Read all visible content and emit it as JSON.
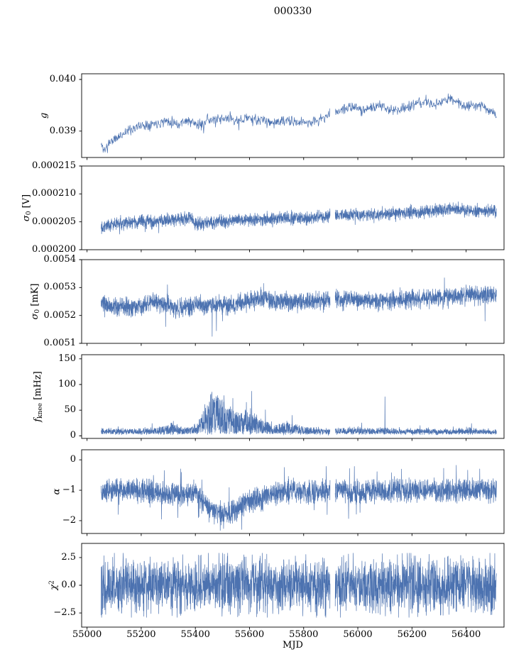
{
  "figure": {
    "title": "000330",
    "xlabel": "MJD",
    "line_color": "#4c72b0",
    "frame_color": "#000000",
    "xlim": [
      54980,
      56540
    ],
    "x_range": [
      55052,
      56512
    ],
    "gaps": [
      [
        55898,
        55916
      ]
    ],
    "xticks": [
      {
        "v": 55000,
        "label": "55000"
      },
      {
        "v": 55200,
        "label": "55200"
      },
      {
        "v": 55400,
        "label": "55400"
      },
      {
        "v": 55600,
        "label": "55600"
      },
      {
        "v": 55800,
        "label": "55800"
      },
      {
        "v": 56000,
        "label": "56000"
      },
      {
        "v": 56200,
        "label": "56200"
      },
      {
        "v": 56400,
        "label": "56400"
      }
    ]
  },
  "chart_data": [
    {
      "type": "line",
      "ylabel_text": "g",
      "ylabel_parts": [
        {
          "t": "g",
          "i": true
        }
      ],
      "ylim": [
        0.03849,
        0.04011
      ],
      "yticks": [
        {
          "v": 0.039,
          "label": "0.039"
        },
        {
          "v": 0.04,
          "label": "0.040"
        }
      ],
      "series": {
        "mode": "gauss",
        "points": 1000,
        "std": 5e-05,
        "seed": 11,
        "clip": [
          0.03852,
          0.04008
        ],
        "baseline": [
          [
            55055,
            0.03872
          ],
          [
            55065,
            0.03862
          ],
          [
            55080,
            0.03878
          ],
          [
            55110,
            0.03886
          ],
          [
            55140,
            0.03898
          ],
          [
            55180,
            0.03908
          ],
          [
            55220,
            0.03913
          ],
          [
            55260,
            0.03916
          ],
          [
            55290,
            0.0392
          ],
          [
            55320,
            0.03918
          ],
          [
            55340,
            0.03912
          ],
          [
            55360,
            0.03922
          ],
          [
            55390,
            0.03916
          ],
          [
            55420,
            0.0391
          ],
          [
            55440,
            0.03924
          ],
          [
            55470,
            0.0392
          ],
          [
            55500,
            0.03922
          ],
          [
            55530,
            0.03926
          ],
          [
            55560,
            0.03918
          ],
          [
            55590,
            0.03928
          ],
          [
            55620,
            0.0392
          ],
          [
            55650,
            0.03922
          ],
          [
            55680,
            0.03916
          ],
          [
            55710,
            0.03918
          ],
          [
            55740,
            0.0392
          ],
          [
            55770,
            0.03916
          ],
          [
            55800,
            0.03918
          ],
          [
            55830,
            0.03917
          ],
          [
            55860,
            0.03922
          ],
          [
            55890,
            0.0393
          ],
          [
            55920,
            0.03938
          ],
          [
            55950,
            0.03944
          ],
          [
            55980,
            0.03946
          ],
          [
            56010,
            0.03942
          ],
          [
            56040,
            0.03944
          ],
          [
            56070,
            0.03948
          ],
          [
            56100,
            0.03946
          ],
          [
            56130,
            0.0394
          ],
          [
            56160,
            0.03944
          ],
          [
            56190,
            0.03948
          ],
          [
            56220,
            0.03952
          ],
          [
            56250,
            0.03958
          ],
          [
            56280,
            0.0395
          ],
          [
            56310,
            0.03956
          ],
          [
            56340,
            0.03964
          ],
          [
            56370,
            0.03955
          ],
          [
            56400,
            0.03948
          ],
          [
            56430,
            0.03952
          ],
          [
            56460,
            0.0395
          ],
          [
            56490,
            0.03938
          ],
          [
            56510,
            0.03934
          ]
        ],
        "spikes": [
          [
            55075,
            0.03858
          ],
          [
            55430,
            0.03896
          ],
          [
            55560,
            0.03902
          ]
        ]
      }
    },
    {
      "type": "line",
      "ylabel_text": "sigma0 [V]",
      "ylabel_parts": [
        {
          "t": "σ",
          "i": true
        },
        {
          "t": "0",
          "sub": true
        },
        {
          "t": " [V]"
        }
      ],
      "ylim": [
        0.0002,
        0.000215
      ],
      "yticks": [
        {
          "v": 0.0002,
          "label": "0.000200"
        },
        {
          "v": 0.000205,
          "label": "0.000205"
        },
        {
          "v": 0.00021,
          "label": "0.000210"
        },
        {
          "v": 0.000215,
          "label": "0.000215"
        }
      ],
      "series": {
        "mode": "gauss",
        "points": 2600,
        "std": 5.5e-07,
        "seed": 22,
        "clip": [
          0.000201,
          0.000214
        ],
        "baseline": [
          [
            55052,
            0.0002042
          ],
          [
            55100,
            0.0002046
          ],
          [
            55150,
            0.0002048
          ],
          [
            55200,
            0.000205
          ],
          [
            55250,
            0.0002051
          ],
          [
            55300,
            0.0002053
          ],
          [
            55350,
            0.0002055
          ],
          [
            55385,
            0.0002057
          ],
          [
            55395,
            0.0002046
          ],
          [
            55450,
            0.0002049
          ],
          [
            55500,
            0.0002051
          ],
          [
            55550,
            0.0002053
          ],
          [
            55600,
            0.0002054
          ],
          [
            55650,
            0.0002055
          ],
          [
            55700,
            0.0002056
          ],
          [
            55750,
            0.0002057
          ],
          [
            55800,
            0.0002056
          ],
          [
            55850,
            0.0002058
          ],
          [
            55900,
            0.0002061
          ],
          [
            55950,
            0.0002062
          ],
          [
            56000,
            0.0002062
          ],
          [
            56050,
            0.0002063
          ],
          [
            56100,
            0.0002064
          ],
          [
            56150,
            0.0002066
          ],
          [
            56200,
            0.0002067
          ],
          [
            56250,
            0.0002069
          ],
          [
            56300,
            0.0002071
          ],
          [
            56330,
            0.0002073
          ],
          [
            56360,
            0.0002074
          ],
          [
            56400,
            0.0002071
          ],
          [
            56450,
            0.000207
          ],
          [
            56512,
            0.000207
          ]
        ],
        "spikes": [
          [
            55120,
            0.0002028
          ],
          [
            55215,
            0.0002032
          ],
          [
            55265,
            0.000203
          ],
          [
            55430,
            0.0002034
          ],
          [
            55470,
            0.0002036
          ],
          [
            55990,
            0.0002045
          ],
          [
            56060,
            0.0002048
          ],
          [
            56140,
            0.000205
          ]
        ]
      }
    },
    {
      "type": "line",
      "ylabel_text": "sigma0 [mK]",
      "ylabel_parts": [
        {
          "t": "σ",
          "i": true
        },
        {
          "t": "0",
          "sub": true
        },
        {
          "t": " [mK]"
        }
      ],
      "ylim": [
        0.0051,
        0.0054
      ],
      "yticks": [
        {
          "v": 0.0051,
          "label": "0.0051"
        },
        {
          "v": 0.0052,
          "label": "0.0052"
        },
        {
          "v": 0.0053,
          "label": "0.0053"
        },
        {
          "v": 0.0054,
          "label": "0.0054"
        }
      ],
      "series": {
        "mode": "gauss",
        "points": 2600,
        "std": 1.6e-05,
        "seed": 33,
        "clip": [
          0.00512,
          0.00538
        ],
        "baseline": [
          [
            55052,
            0.00524
          ],
          [
            55100,
            0.00523
          ],
          [
            55150,
            0.005228
          ],
          [
            55200,
            0.005232
          ],
          [
            55240,
            0.00525
          ],
          [
            55270,
            0.005245
          ],
          [
            55300,
            0.005238
          ],
          [
            55330,
            0.005225
          ],
          [
            55360,
            0.00523
          ],
          [
            55400,
            0.005238
          ],
          [
            55440,
            0.005235
          ],
          [
            55480,
            0.005238
          ],
          [
            55520,
            0.00524
          ],
          [
            55560,
            0.005242
          ],
          [
            55600,
            0.005248
          ],
          [
            55640,
            0.005262
          ],
          [
            55670,
            0.005258
          ],
          [
            55700,
            0.00525
          ],
          [
            55750,
            0.005248
          ],
          [
            55800,
            0.00525
          ],
          [
            55850,
            0.005252
          ],
          [
            55900,
            0.005255
          ],
          [
            55950,
            0.005255
          ],
          [
            56000,
            0.005258
          ],
          [
            56050,
            0.00525
          ],
          [
            56100,
            0.005252
          ],
          [
            56150,
            0.005255
          ],
          [
            56200,
            0.005258
          ],
          [
            56250,
            0.005262
          ],
          [
            56300,
            0.005265
          ],
          [
            56350,
            0.005268
          ],
          [
            56400,
            0.005272
          ],
          [
            56450,
            0.005272
          ],
          [
            56512,
            0.005275
          ]
        ],
        "spikes": [
          [
            55290,
            0.00516
          ],
          [
            55297,
            0.00531
          ],
          [
            55462,
            0.005125
          ],
          [
            55478,
            0.005145
          ],
          [
            55500,
            0.00518
          ],
          [
            55652,
            0.005315
          ],
          [
            56320,
            0.005335
          ],
          [
            56470,
            0.00518
          ]
        ]
      }
    },
    {
      "type": "line",
      "ylabel_text": "f_knee [mHz]",
      "ylabel_parts": [
        {
          "t": "f",
          "i": true
        },
        {
          "t": "knee",
          "sub": true
        },
        {
          "t": " [mHz]"
        }
      ],
      "ylim": [
        -5,
        158
      ],
      "yticks": [
        {
          "v": 0,
          "label": "0"
        },
        {
          "v": 50,
          "label": "50"
        },
        {
          "v": 100,
          "label": "100"
        },
        {
          "v": 150,
          "label": "150"
        }
      ],
      "series": {
        "mode": "burst",
        "points": 2600,
        "floor": 4,
        "pow": 1.3,
        "jitter": 1.2,
        "seed": 44,
        "clip": [
          0,
          150
        ],
        "baseline": [
          [
            55052,
            14
          ],
          [
            55150,
            13
          ],
          [
            55250,
            15
          ],
          [
            55300,
            22
          ],
          [
            55320,
            28
          ],
          [
            55340,
            18
          ],
          [
            55380,
            16
          ],
          [
            55410,
            25
          ],
          [
            55430,
            55
          ],
          [
            55450,
            75
          ],
          [
            55465,
            92
          ],
          [
            55480,
            80
          ],
          [
            55500,
            72
          ],
          [
            55520,
            62
          ],
          [
            55545,
            50
          ],
          [
            55570,
            45
          ],
          [
            55590,
            60
          ],
          [
            55610,
            50
          ],
          [
            55640,
            35
          ],
          [
            55670,
            28
          ],
          [
            55700,
            22
          ],
          [
            55740,
            28
          ],
          [
            55780,
            20
          ],
          [
            55820,
            18
          ],
          [
            55860,
            16
          ],
          [
            55900,
            14
          ],
          [
            55950,
            16
          ],
          [
            56000,
            18
          ],
          [
            56050,
            14
          ],
          [
            56100,
            16
          ],
          [
            56150,
            13
          ],
          [
            56200,
            12
          ],
          [
            56250,
            14
          ],
          [
            56300,
            13
          ],
          [
            56350,
            12
          ],
          [
            56400,
            16
          ],
          [
            56450,
            13
          ],
          [
            56512,
            12
          ]
        ],
        "spikes": [
          [
            55240,
            24
          ],
          [
            55905,
            26
          ],
          [
            56100,
            76
          ],
          [
            56230,
            20
          ],
          [
            56420,
            24
          ]
        ]
      }
    },
    {
      "type": "line",
      "ylabel_text": "alpha",
      "ylabel_parts": [
        {
          "t": "α",
          "i": true
        }
      ],
      "ylim": [
        -2.42,
        0.33
      ],
      "yticks": [
        {
          "v": 0,
          "label": "0"
        },
        {
          "v": -1,
          "label": "−1"
        },
        {
          "v": -2,
          "label": "−2"
        }
      ],
      "series": {
        "mode": "uniform",
        "points": 2600,
        "width": 0.45,
        "outlier_p": 0.012,
        "outlier_ext": 0.45,
        "seed": 55,
        "clip": [
          -2.32,
          -0.18
        ],
        "baseline": [
          [
            55052,
            -1.0
          ],
          [
            55150,
            -1.0
          ],
          [
            55230,
            -1.02
          ],
          [
            55270,
            -1.08
          ],
          [
            55300,
            -1.15
          ],
          [
            55330,
            -1.1
          ],
          [
            55360,
            -1.22
          ],
          [
            55380,
            -1.1
          ],
          [
            55400,
            -1.05
          ],
          [
            55420,
            -1.3
          ],
          [
            55440,
            -1.55
          ],
          [
            55460,
            -1.68
          ],
          [
            55480,
            -1.72
          ],
          [
            55500,
            -1.78
          ],
          [
            55520,
            -1.75
          ],
          [
            55540,
            -1.7
          ],
          [
            55560,
            -1.55
          ],
          [
            55580,
            -1.45
          ],
          [
            55600,
            -1.35
          ],
          [
            55620,
            -1.28
          ],
          [
            55640,
            -1.35
          ],
          [
            55660,
            -1.2
          ],
          [
            55680,
            -1.12
          ],
          [
            55700,
            -1.08
          ],
          [
            55730,
            -1.05
          ],
          [
            55760,
            -1.02
          ],
          [
            55800,
            -1.05
          ],
          [
            55900,
            -1.02
          ],
          [
            56000,
            -1.05
          ],
          [
            56100,
            -1.02
          ],
          [
            56200,
            -1.0
          ],
          [
            56300,
            -1.02
          ],
          [
            56400,
            -1.0
          ],
          [
            56512,
            -1.0
          ]
        ],
        "spikes": [
          [
            55275,
            -1.95
          ],
          [
            55285,
            -0.35
          ],
          [
            55335,
            -1.9
          ],
          [
            55345,
            -0.3
          ],
          [
            56450,
            -0.3
          ]
        ]
      }
    },
    {
      "type": "line",
      "ylabel_text": "chi^2",
      "ylabel_parts": [
        {
          "t": "χ",
          "i": true
        },
        {
          "t": "2",
          "sup": true
        }
      ],
      "ylim": [
        -3.78,
        3.78
      ],
      "yticks": [
        {
          "v": 2.5,
          "label": "2.5"
        },
        {
          "v": 0.0,
          "label": "0.0"
        },
        {
          "v": -2.5,
          "label": "−2.5"
        }
      ],
      "series": {
        "mode": "gauss",
        "points": 2600,
        "std": 1.2,
        "seed": 66,
        "clip": [
          -2.9,
          2.9
        ],
        "baseline": [
          [
            55052,
            0
          ],
          [
            56512,
            0
          ]
        ],
        "spikes": [
          [
            55610,
            2.75
          ],
          [
            56090,
            2.85
          ],
          [
            55210,
            -2.8
          ],
          [
            56380,
            2.7
          ]
        ]
      }
    }
  ]
}
